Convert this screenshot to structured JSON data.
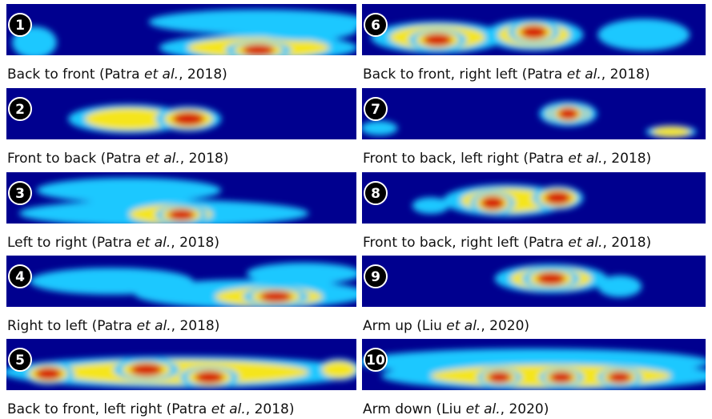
{
  "panels": [
    {
      "number": "1",
      "caption": [
        "Back to front (Patra ",
        "et al.",
        ", 2018)"
      ]
    },
    {
      "number": "6",
      "caption": [
        "Back to front, right left (Patra ",
        "et al.",
        ", 2018)"
      ]
    },
    {
      "number": "2",
      "caption": [
        "Front to back (Patra ",
        "et al.",
        ", 2018)"
      ]
    },
    {
      "number": "7",
      "caption": [
        "Front to back, left right (Patra ",
        "et al.",
        ", 2018)"
      ]
    },
    {
      "number": "3",
      "caption": [
        "Left to right (Patra ",
        "et al.",
        ", 2018)"
      ]
    },
    {
      "number": "8",
      "caption": [
        "Front to back, right left (Patra ",
        "et al.",
        ", 2018)"
      ]
    },
    {
      "number": "4",
      "caption": [
        "Right to left (Patra ",
        "et al.",
        ", 2018)"
      ]
    },
    {
      "number": "9",
      "caption": [
        "Arm up (Liu ",
        "et al.",
        ", 2020)"
      ]
    },
    {
      "number": "5",
      "caption": [
        "Back to front, left right (Patra ",
        "et al.",
        ", 2018)"
      ]
    },
    {
      "number": "10",
      "caption": [
        "Arm down (Liu ",
        "et al.",
        ", 2020)"
      ]
    }
  ]
}
